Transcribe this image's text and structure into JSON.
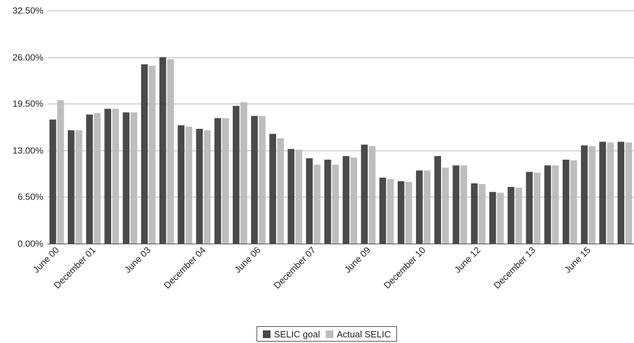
{
  "chart_data": {
    "type": "bar",
    "title": "",
    "xlabel": "",
    "ylabel": "",
    "ylim": [
      0,
      32.5
    ],
    "yticks": [
      "0.00%",
      "6.50%",
      "13.00%",
      "19.50%",
      "26.00%",
      "32.50%"
    ],
    "ytick_values": [
      0,
      6.5,
      13,
      19.5,
      26,
      32.5
    ],
    "grid": "horizontal",
    "legend_position": "bottom",
    "categories": [
      "June 00",
      "",
      "December 01",
      "",
      "",
      "June 03",
      "",
      "",
      "December 04",
      "",
      "",
      "June 06",
      "",
      "",
      "December 07",
      "",
      "",
      "June 09",
      "",
      "",
      "December 10",
      "",
      "",
      "June 12",
      "",
      "",
      "December 13",
      "",
      "",
      "June 15",
      "",
      ""
    ],
    "series": [
      {
        "name": "SELIC goal",
        "color": "#4a4a4a",
        "values": [
          17.3,
          15.8,
          18.0,
          18.8,
          18.3,
          25.0,
          26.0,
          16.5,
          16.0,
          17.5,
          19.2,
          17.8,
          15.3,
          13.2,
          11.9,
          11.7,
          12.2,
          13.8,
          9.2,
          8.7,
          10.2,
          12.2,
          10.9,
          8.4,
          7.2,
          7.9,
          10.0,
          10.9,
          11.7,
          13.7,
          14.2,
          14.2
        ]
      },
      {
        "name": "Actual SELIC",
        "color": "#bdbdbd",
        "values": [
          20.0,
          15.8,
          18.2,
          18.8,
          18.3,
          24.8,
          25.7,
          16.3,
          15.8,
          17.5,
          19.7,
          17.8,
          14.7,
          13.1,
          11.0,
          11.0,
          12.0,
          13.6,
          9.0,
          8.6,
          10.2,
          10.6,
          10.9,
          8.3,
          7.1,
          7.8,
          9.9,
          10.9,
          11.6,
          13.6,
          14.1,
          14.1
        ]
      }
    ]
  }
}
